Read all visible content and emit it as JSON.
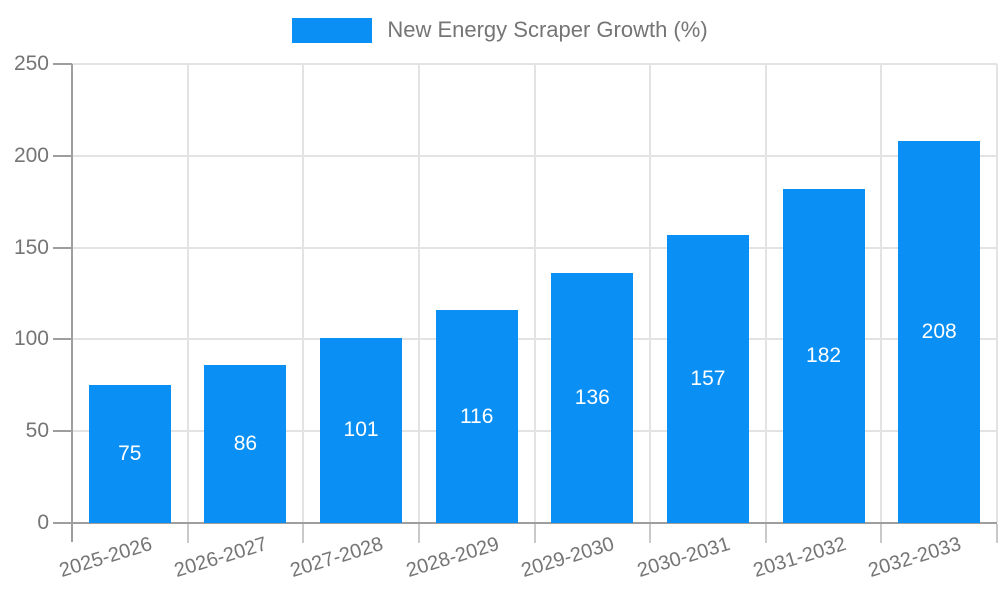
{
  "legend": {
    "label": "New Energy Scraper Growth (%)"
  },
  "colors": {
    "bar": "#0a8ff5",
    "value_label": "#ffffff",
    "axis_label": "#757575",
    "axis_line": "#9e9e9e",
    "gridline": "#e3e3e3",
    "boundary_tick": "#c9c9c9"
  },
  "chart_data": {
    "type": "bar",
    "title": "New Energy Scraper Growth (%)",
    "categories": [
      "2025-2026",
      "2026-2027",
      "2027-2028",
      "2028-2029",
      "2029-2030",
      "2030-2031",
      "2031-2032",
      "2032-2033"
    ],
    "values": [
      75,
      86,
      101,
      116,
      136,
      157,
      182,
      208
    ],
    "xlabel": "",
    "ylabel": "",
    "ylim": [
      0,
      250
    ],
    "yticks": [
      0,
      50,
      100,
      150,
      200,
      250
    ],
    "grid": true,
    "legend_position": "top",
    "value_labels": "inside-center-white",
    "x_label_rotation_deg": -17
  }
}
